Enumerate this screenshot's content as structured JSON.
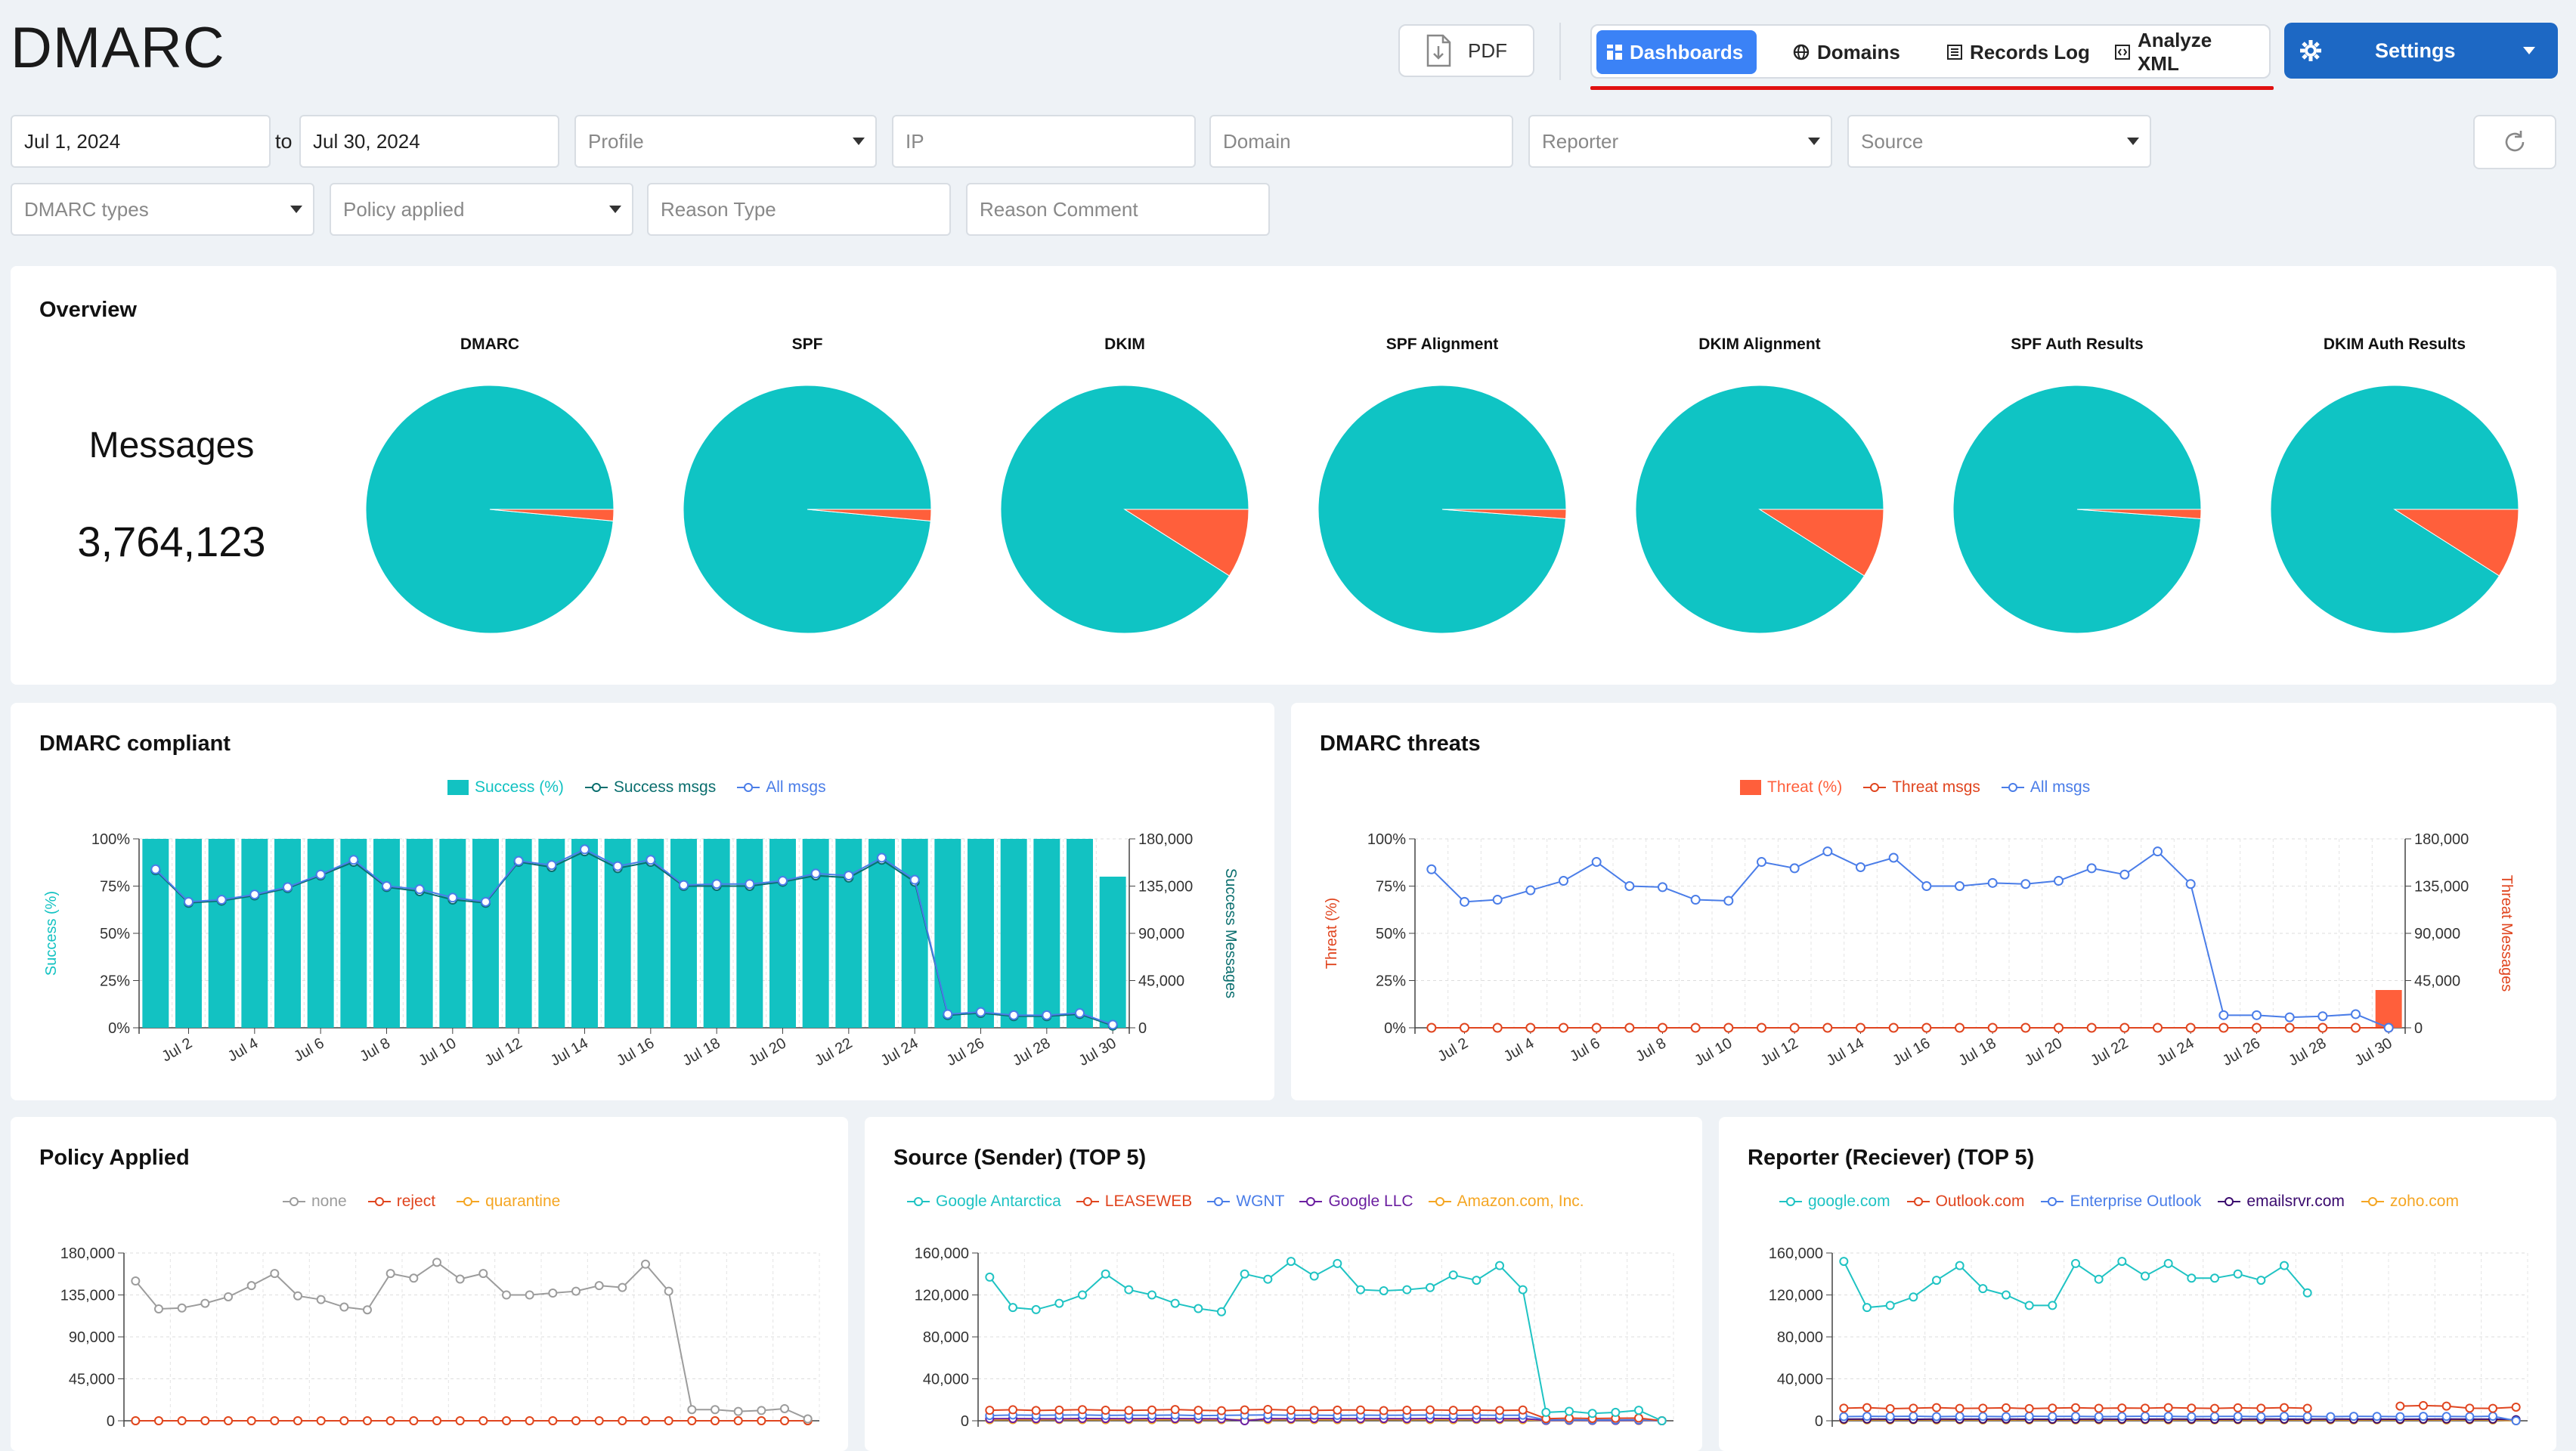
{
  "app": {
    "title": "DMARC"
  },
  "header": {
    "pdf_label": "PDF",
    "nav": [
      {
        "label": "Dashboards",
        "active": true
      },
      {
        "label": "Domains"
      },
      {
        "label": "Records Log"
      },
      {
        "label": "Analyze XML"
      }
    ],
    "settings_label": "Settings"
  },
  "filters": {
    "date_from": "Jul 1, 2024",
    "to_label": "to",
    "date_to": "Jul 30, 2024",
    "profile": "Profile",
    "ip": "IP",
    "domain": "Domain",
    "reporter": "Reporter",
    "source": "Source",
    "dmarc_types": "DMARC types",
    "policy_applied": "Policy applied",
    "reason_type": "Reason Type",
    "reason_comment": "Reason Comment"
  },
  "overview": {
    "title": "Overview",
    "messages_label": "Messages",
    "messages_count": "3,764,123",
    "pies": [
      {
        "label": "DMARC",
        "fail_pct": 0.015
      },
      {
        "label": "SPF",
        "fail_pct": 0.015
      },
      {
        "label": "DKIM",
        "fail_pct": 0.09
      },
      {
        "label": "SPF Alignment",
        "fail_pct": 0.012
      },
      {
        "label": "DKIM Alignment",
        "fail_pct": 0.09
      },
      {
        "label": "SPF Auth Results",
        "fail_pct": 0.012
      },
      {
        "label": "DKIM Auth Results",
        "fail_pct": 0.09
      }
    ],
    "colors": {
      "pass": "#0fc4c4",
      "fail": "#ff5f3b"
    }
  },
  "compliant": {
    "title": "DMARC compliant",
    "legend": [
      "Success (%)",
      "Success msgs",
      "All msgs"
    ]
  },
  "threats": {
    "title": "DMARC threats",
    "legend": [
      "Threat (%)",
      "Threat msgs",
      "All msgs"
    ]
  },
  "policy": {
    "title": "Policy Applied",
    "legend": [
      "none",
      "reject",
      "quarantine"
    ]
  },
  "source": {
    "title": "Source (Sender)  (TOP 5)",
    "legend": [
      "Google Antarctica",
      "LEASEWEB",
      "WGNT",
      "Google LLC",
      "Amazon.com, Inc."
    ]
  },
  "reporter": {
    "title": "Reporter (Reciever)  (TOP 5)",
    "legend": [
      "google.com",
      "Outlook.com",
      "Enterprise Outlook",
      "emailsrvr.com",
      "zoho.com"
    ]
  },
  "chart_data": [
    {
      "type": "bar",
      "title": "DMARC compliant",
      "categories": [
        "Jul 1",
        "Jul 2",
        "Jul 3",
        "Jul 4",
        "Jul 5",
        "Jul 6",
        "Jul 7",
        "Jul 8",
        "Jul 9",
        "Jul 10",
        "Jul 11",
        "Jul 12",
        "Jul 13",
        "Jul 14",
        "Jul 15",
        "Jul 16",
        "Jul 17",
        "Jul 18",
        "Jul 19",
        "Jul 20",
        "Jul 21",
        "Jul 22",
        "Jul 23",
        "Jul 24",
        "Jul 25",
        "Jul 26",
        "Jul 27",
        "Jul 28",
        "Jul 29",
        "Jul 30"
      ],
      "xtick_labels": [
        "Jul 2",
        "Jul 4",
        "Jul 6",
        "Jul 8",
        "Jul 10",
        "Jul 12",
        "Jul 14",
        "Jul 16",
        "Jul 18",
        "Jul 20",
        "Jul 22",
        "Jul 24",
        "Jul 26",
        "Jul 28",
        "Jul 30"
      ],
      "ylabel": "Success (%)",
      "y2label": "Success Messages",
      "ylim": [
        0,
        100
      ],
      "y_ticks": [
        "0%",
        "25%",
        "50%",
        "75%",
        "100%"
      ],
      "y2lim": [
        0,
        180000
      ],
      "y2_ticks": [
        "0",
        "45,000",
        "90,000",
        "135,000",
        "180,000"
      ],
      "series": [
        {
          "name": "Success (%)",
          "kind": "bar",
          "axis": "left",
          "color": "#12c2c2",
          "values": [
            100,
            100,
            100,
            100,
            100,
            100,
            100,
            100,
            100,
            100,
            100,
            100,
            100,
            100,
            100,
            100,
            100,
            100,
            100,
            100,
            100,
            100,
            100,
            100,
            100,
            100,
            100,
            100,
            100,
            80
          ]
        },
        {
          "name": "Success msgs",
          "kind": "line",
          "axis": "right",
          "color": "#0a6e6e",
          "values": [
            150000,
            119000,
            121000,
            126000,
            133000,
            145000,
            158000,
            134000,
            130000,
            122000,
            119000,
            158000,
            153000,
            168000,
            152000,
            158000,
            135000,
            135000,
            135000,
            139000,
            145000,
            143000,
            160000,
            139000,
            12000,
            14000,
            11000,
            11000,
            13000,
            2000
          ]
        },
        {
          "name": "All msgs",
          "kind": "line",
          "axis": "right",
          "color": "#4a7de8",
          "values": [
            151000,
            120000,
            122000,
            127000,
            134000,
            146000,
            160000,
            135000,
            132000,
            124000,
            120000,
            159000,
            155000,
            170000,
            154000,
            160000,
            136000,
            137000,
            137000,
            140000,
            147000,
            145000,
            162000,
            141000,
            13000,
            15000,
            12000,
            12000,
            14000,
            3000
          ]
        }
      ]
    },
    {
      "type": "bar",
      "title": "DMARC threats",
      "categories": [
        "Jul 1",
        "Jul 2",
        "Jul 3",
        "Jul 4",
        "Jul 5",
        "Jul 6",
        "Jul 7",
        "Jul 8",
        "Jul 9",
        "Jul 10",
        "Jul 11",
        "Jul 12",
        "Jul 13",
        "Jul 14",
        "Jul 15",
        "Jul 16",
        "Jul 17",
        "Jul 18",
        "Jul 19",
        "Jul 20",
        "Jul 21",
        "Jul 22",
        "Jul 23",
        "Jul 24",
        "Jul 25",
        "Jul 26",
        "Jul 27",
        "Jul 28",
        "Jul 29",
        "Jul 30"
      ],
      "xtick_labels": [
        "Jul 2",
        "Jul 4",
        "Jul 6",
        "Jul 8",
        "Jul 10",
        "Jul 12",
        "Jul 14",
        "Jul 16",
        "Jul 18",
        "Jul 20",
        "Jul 22",
        "Jul 24",
        "Jul 26",
        "Jul 28",
        "Jul 30"
      ],
      "ylabel": "Threat (%)",
      "y2label": "Threat Messages",
      "ylim": [
        0,
        100
      ],
      "y_ticks": [
        "0%",
        "25%",
        "50%",
        "75%",
        "100%"
      ],
      "y2lim": [
        0,
        180000
      ],
      "y2_ticks": [
        "0",
        "45,000",
        "90,000",
        "135,000",
        "180,000"
      ],
      "series": [
        {
          "name": "Threat (%)",
          "kind": "bar",
          "axis": "left",
          "color": "#ff5f3b",
          "values": [
            0,
            0,
            0,
            0,
            0,
            0,
            0,
            0,
            0,
            0,
            0,
            0,
            0,
            0,
            0,
            0,
            0,
            0,
            0,
            0,
            0,
            0,
            0,
            0,
            0,
            0,
            0,
            0,
            0,
            20
          ]
        },
        {
          "name": "Threat msgs",
          "kind": "line",
          "axis": "right",
          "color": "#e0451f",
          "values": [
            0,
            0,
            0,
            0,
            0,
            0,
            0,
            0,
            0,
            0,
            0,
            0,
            0,
            0,
            0,
            0,
            0,
            0,
            0,
            0,
            0,
            0,
            0,
            0,
            0,
            0,
            0,
            0,
            0,
            0
          ]
        },
        {
          "name": "All msgs",
          "kind": "line",
          "axis": "right",
          "color": "#4a7de8",
          "values": [
            151000,
            120000,
            122000,
            131000,
            140000,
            158000,
            135000,
            134000,
            122000,
            121000,
            158000,
            152000,
            168000,
            153000,
            162000,
            135000,
            135000,
            138000,
            137000,
            140000,
            152000,
            146000,
            168000,
            137000,
            12000,
            12000,
            10000,
            11000,
            13000,
            0
          ]
        }
      ]
    },
    {
      "type": "line",
      "title": "Policy Applied",
      "ylim": [
        0,
        180000
      ],
      "y_ticks": [
        "0",
        "45,000",
        "90,000",
        "135,000",
        "180,000"
      ],
      "series": [
        {
          "name": "none",
          "color": "#9c9c9c",
          "values": [
            150000,
            120000,
            121000,
            126000,
            133000,
            145000,
            158000,
            134000,
            130000,
            122000,
            119000,
            158000,
            153000,
            170000,
            152000,
            158000,
            135000,
            135000,
            137000,
            139000,
            145000,
            143000,
            168000,
            139000,
            12000,
            12000,
            10000,
            11000,
            13000,
            2000
          ]
        },
        {
          "name": "reject",
          "color": "#e0451f",
          "values": [
            0,
            0,
            0,
            0,
            0,
            0,
            0,
            0,
            0,
            0,
            0,
            0,
            0,
            0,
            0,
            0,
            0,
            0,
            0,
            0,
            0,
            0,
            0,
            0,
            0,
            0,
            0,
            0,
            0,
            0
          ]
        },
        {
          "name": "quarantine",
          "color": "#f5a623",
          "values": [
            0,
            0,
            0,
            0,
            0,
            0,
            0,
            0,
            0,
            0,
            0,
            0,
            0,
            0,
            0,
            0,
            0,
            0,
            0,
            0,
            0,
            0,
            0,
            0,
            0,
            0,
            0,
            0,
            0,
            0
          ]
        }
      ]
    },
    {
      "type": "line",
      "title": "Source (Sender)  (TOP 5)",
      "ylim": [
        0,
        160000
      ],
      "y_ticks": [
        "0",
        "40,000",
        "80,000",
        "120,000",
        "160,000"
      ],
      "series": [
        {
          "name": "Google Antarctica",
          "color": "#1fc3c3",
          "values": [
            137000,
            108000,
            106000,
            112000,
            120000,
            140000,
            125000,
            120000,
            112000,
            107000,
            104000,
            140000,
            135000,
            152000,
            138000,
            150000,
            125000,
            124000,
            125000,
            127000,
            139000,
            134000,
            148000,
            125000,
            8000,
            9000,
            7000,
            8000,
            10000,
            0
          ]
        },
        {
          "name": "LEASEWEB",
          "color": "#e0451f",
          "values": [
            10000,
            10500,
            9800,
            10200,
            10600,
            10100,
            9900,
            10300,
            10700,
            10000,
            9600,
            10400,
            10800,
            10100,
            9900,
            10200,
            10300,
            9700,
            10100,
            10400,
            10000,
            10200,
            9800,
            10300,
            2000,
            2500,
            2200,
            2400,
            2600,
            0
          ]
        },
        {
          "name": "WGNT",
          "color": "#4a7de8",
          "values": [
            5000,
            5500,
            5200,
            5400,
            5600,
            5100,
            5300,
            5200,
            5500,
            5000,
            5100,
            5400,
            5600,
            5200,
            5300,
            5100,
            5400,
            5200,
            5300,
            5500,
            5100,
            5400,
            5200,
            5300,
            800,
            900,
            700,
            800,
            900,
            0
          ]
        },
        {
          "name": "Google LLC",
          "color": "#6b1fa0",
          "values": [
            2000,
            2100,
            2000,
            1900,
            2200,
            2100,
            2000,
            2200,
            2100,
            2000,
            1900,
            0,
            2100,
            2000,
            2200,
            2100,
            2000,
            2100,
            2000,
            2200,
            2100,
            2000,
            2000,
            2100,
            400,
            500,
            400,
            400,
            500,
            0
          ]
        },
        {
          "name": "Amazon.com, Inc.",
          "color": "#f5a623",
          "values": [
            1000,
            1100,
            1000,
            1200,
            1100,
            1000,
            1100,
            1000,
            1200,
            1100,
            1000,
            1100,
            1000,
            1200,
            1100,
            1000,
            1100,
            1200,
            1000,
            1100,
            1000,
            1200,
            1100,
            1000,
            300,
            300,
            300,
            300,
            300,
            0
          ]
        }
      ]
    },
    {
      "type": "line",
      "title": "Reporter (Reciever)  (TOP 5)",
      "ylim": [
        0,
        160000
      ],
      "y_ticks": [
        "0",
        "40,000",
        "80,000",
        "120,000",
        "160,000"
      ],
      "series": [
        {
          "name": "google.com",
          "color": "#1fc3c3",
          "values": [
            152000,
            108000,
            110000,
            118000,
            134000,
            148000,
            126000,
            120000,
            110000,
            110000,
            150000,
            135000,
            152000,
            138000,
            150000,
            136000,
            136000,
            140000,
            134000,
            148000,
            122000,
            null,
            null,
            null,
            null,
            null,
            null,
            null,
            null,
            null
          ]
        },
        {
          "name": "Outlook.com",
          "color": "#e0451f",
          "values": [
            12000,
            12500,
            11500,
            12000,
            12500,
            11800,
            12000,
            12300,
            11600,
            12100,
            12400,
            11900,
            12200,
            12000,
            12500,
            12100,
            11800,
            12300,
            12000,
            12500,
            11900,
            null,
            null,
            null,
            14000,
            14500,
            14000,
            12000,
            11800,
            13000
          ]
        },
        {
          "name": "Enterprise Outlook",
          "color": "#4a7de8",
          "values": [
            4000,
            4200,
            4100,
            4300,
            4000,
            4200,
            4100,
            4000,
            4300,
            4100,
            4200,
            4000,
            4100,
            4300,
            4200,
            4000,
            4100,
            4200,
            4000,
            4300,
            4100,
            4000,
            4200,
            4100,
            4000,
            4200,
            4100,
            4000,
            4300,
            0
          ]
        },
        {
          "name": "emailsrvr.com",
          "color": "#3a0a6e",
          "values": [
            1500,
            1600,
            1500,
            1400,
            1600,
            1500,
            1500,
            1600,
            1500,
            1400,
            1500,
            1600,
            1500,
            1500,
            1600,
            1500,
            1400,
            1500,
            1600,
            1500,
            1500,
            1600,
            1500,
            1500,
            1400,
            1500,
            1600,
            1500,
            1500,
            1000
          ]
        },
        {
          "name": "zoho.com",
          "color": "#f5a623",
          "values": [
            800,
            900,
            800,
            900,
            800,
            900,
            800,
            900,
            800,
            900,
            800,
            900,
            800,
            900,
            800,
            900,
            800,
            900,
            800,
            900,
            800,
            900,
            800,
            900,
            800,
            900,
            800,
            900,
            800,
            0
          ]
        }
      ]
    }
  ]
}
